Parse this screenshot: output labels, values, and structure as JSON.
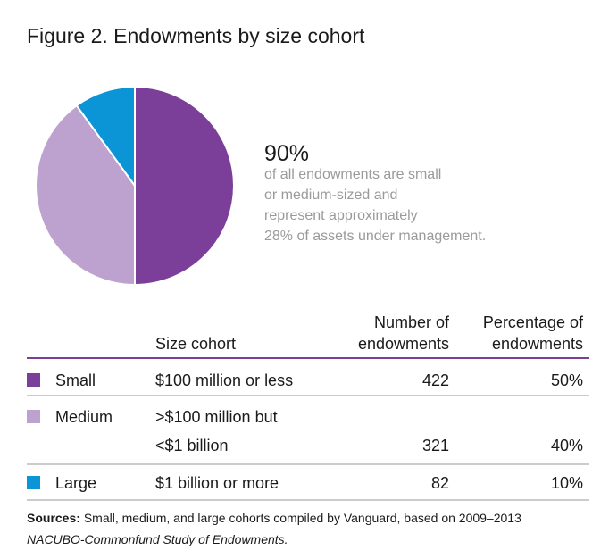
{
  "chart_data": {
    "type": "pie",
    "title": "Figure 2. Endowments by size cohort",
    "categories": [
      "Small",
      "Medium",
      "Large"
    ],
    "values": [
      50,
      40,
      10
    ],
    "value_labels": [
      "50%",
      "40%",
      "10%"
    ],
    "colors": [
      "#7b3f99",
      "#bda2cf",
      "#0b95d6"
    ],
    "callout": {
      "headline": "90%",
      "lines": [
        "of all endowments are small",
        "or medium-sized and",
        "represent approximately",
        "28% of assets under management."
      ]
    },
    "table": {
      "headers": {
        "cohort": [
          "Size cohort"
        ],
        "count": [
          "Number of",
          "endowments"
        ],
        "percentage": [
          "Percentage of",
          "endowments"
        ]
      },
      "descriptions": [
        [
          "$100 million or less"
        ],
        [
          ">$100 million but",
          "<$1 billion"
        ],
        [
          "$1 billion or more"
        ]
      ],
      "counts": [
        422,
        321,
        82
      ]
    },
    "source": {
      "label": "Sources:",
      "text": "Small, medium, and large cohorts compiled by Vanguard, based on 2009–2013",
      "italic": "NACUBO-Commonfund Study of Endowments."
    }
  }
}
